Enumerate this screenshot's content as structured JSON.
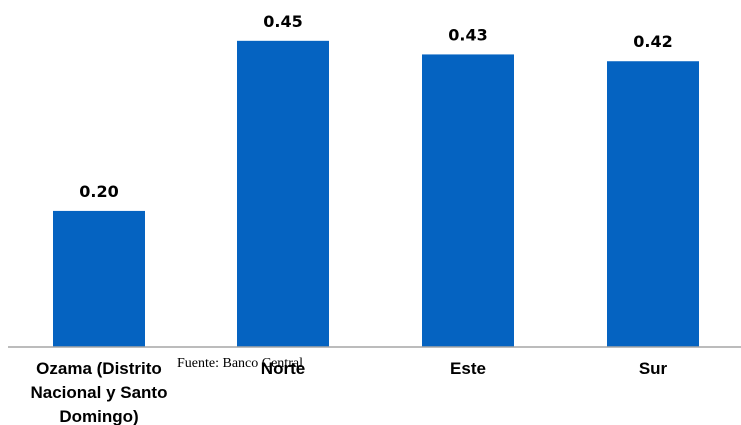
{
  "chart_data": {
    "type": "bar",
    "categories": [
      [
        "Ozama (Distrito",
        "Nacional y Santo",
        "Domingo)"
      ],
      [
        "Norte"
      ],
      [
        "Este"
      ],
      [
        "Sur"
      ]
    ],
    "values": [
      0.2,
      0.45,
      0.43,
      0.42
    ],
    "data_labels": [
      "0.20",
      "0.45",
      "0.43",
      "0.42"
    ],
    "ylim": [
      0,
      0.51
    ],
    "grid": false,
    "legend": false,
    "bar_color": "#0563C1",
    "axis_color": "#A6A6A6"
  },
  "source_note": "Fuente: Banco Central"
}
